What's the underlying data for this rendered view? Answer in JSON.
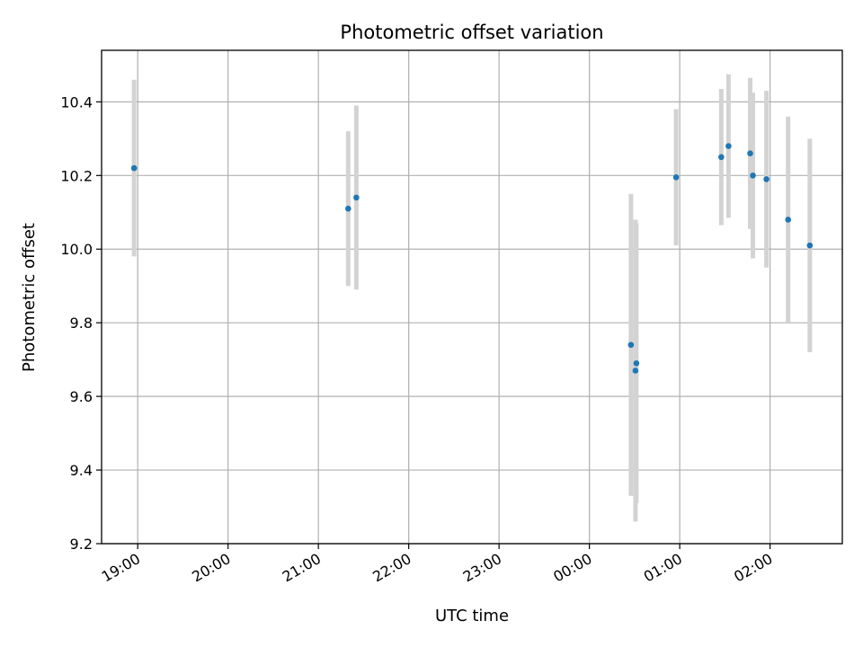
{
  "chart_data": {
    "type": "scatter",
    "title": "Photometric offset variation",
    "xlabel": "UTC time",
    "ylabel": "Photometric offset",
    "x_tick_labels": [
      "19:00",
      "20:00",
      "21:00",
      "22:00",
      "23:00",
      "00:00",
      "01:00",
      "02:00"
    ],
    "x_range_hours": [
      18.6,
      26.8
    ],
    "ylim": [
      9.2,
      10.54
    ],
    "y_ticks": [
      9.2,
      9.4,
      9.6,
      9.8,
      10.0,
      10.2,
      10.4
    ],
    "grid": true,
    "legend": "none",
    "colors": {
      "point": "#1f77b4",
      "errorbar": "#d3d3d3",
      "grid": "#b0b0b0",
      "axes": "#000000"
    },
    "points": [
      {
        "time": "18:57",
        "hour": 18.96,
        "y": 10.22,
        "err": 0.24
      },
      {
        "time": "21:20",
        "hour": 21.33,
        "y": 10.11,
        "err": 0.21
      },
      {
        "time": "21:25",
        "hour": 21.42,
        "y": 10.14,
        "err": 0.25
      },
      {
        "time": "00:28",
        "hour": 24.46,
        "y": 9.74,
        "err": 0.41
      },
      {
        "time": "00:31",
        "hour": 24.52,
        "y": 9.69,
        "err": 0.38
      },
      {
        "time": "00:31",
        "hour": 24.51,
        "y": 9.67,
        "err": 0.41
      },
      {
        "time": "00:58",
        "hour": 24.96,
        "y": 10.195,
        "err": 0.185
      },
      {
        "time": "01:28",
        "hour": 25.46,
        "y": 10.25,
        "err": 0.185
      },
      {
        "time": "01:33",
        "hour": 25.54,
        "y": 10.28,
        "err": 0.195
      },
      {
        "time": "01:47",
        "hour": 25.78,
        "y": 10.26,
        "err": 0.205
      },
      {
        "time": "01:49",
        "hour": 25.81,
        "y": 10.2,
        "err": 0.225
      },
      {
        "time": "01:58",
        "hour": 25.96,
        "y": 10.19,
        "err": 0.24
      },
      {
        "time": "02:12",
        "hour": 26.2,
        "y": 10.08,
        "err": 0.28
      },
      {
        "time": "02:26",
        "hour": 26.44,
        "y": 10.01,
        "err": 0.29
      }
    ]
  }
}
